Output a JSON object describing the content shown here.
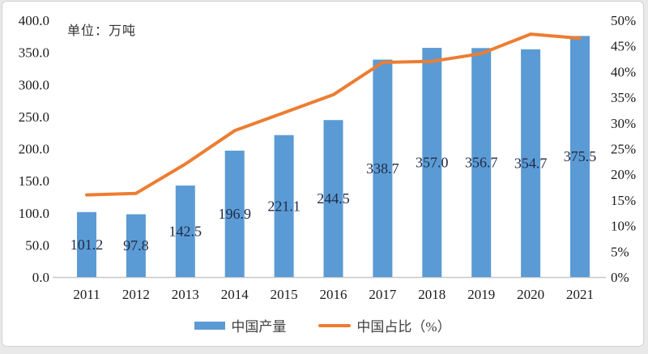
{
  "chart": {
    "unit_label": "单位：万吨",
    "legend": [
      {
        "label": "中国产量",
        "type": "bar",
        "color": "#5B9BD5"
      },
      {
        "label": "中国占比（%）",
        "type": "line",
        "color": "#ED7D31"
      }
    ]
  },
  "chart_data": {
    "type": "bar+line",
    "title": "",
    "categories": [
      "2011",
      "2012",
      "2013",
      "2014",
      "2015",
      "2016",
      "2017",
      "2018",
      "2019",
      "2020",
      "2021"
    ],
    "series": [
      {
        "name": "中国产量",
        "type": "bar",
        "axis": "left",
        "color": "#5B9BD5",
        "values": [
          101.2,
          97.8,
          142.5,
          196.9,
          221.1,
          244.5,
          338.7,
          357.0,
          356.7,
          354.7,
          375.5
        ],
        "labels": [
          "101.2",
          "97.8",
          "142.5",
          "196.9",
          "221.1",
          "244.5",
          "338.7",
          "357.0",
          "356.7",
          "354.7",
          "375.5"
        ]
      },
      {
        "name": "中国占比（%）",
        "type": "line",
        "axis": "right",
        "color": "#ED7D31",
        "values": [
          16,
          16.3,
          22,
          28.5,
          32,
          35.5,
          41.8,
          42,
          43.5,
          47.3,
          46.5
        ]
      }
    ],
    "left_axis": {
      "min": 0,
      "max": 400,
      "step": 50,
      "ticks": [
        "400.0",
        "350.0",
        "300.0",
        "250.0",
        "200.0",
        "150.0",
        "100.0",
        "50.0",
        "0.0"
      ]
    },
    "right_axis": {
      "min": 0,
      "max": 50,
      "step": 5,
      "ticks": [
        "50%",
        "45%",
        "40%",
        "35%",
        "30%",
        "25%",
        "20%",
        "15%",
        "10%",
        "5%",
        "0%"
      ]
    },
    "grid": false,
    "legend_position": "bottom",
    "value_label_placement": "inside-center"
  }
}
